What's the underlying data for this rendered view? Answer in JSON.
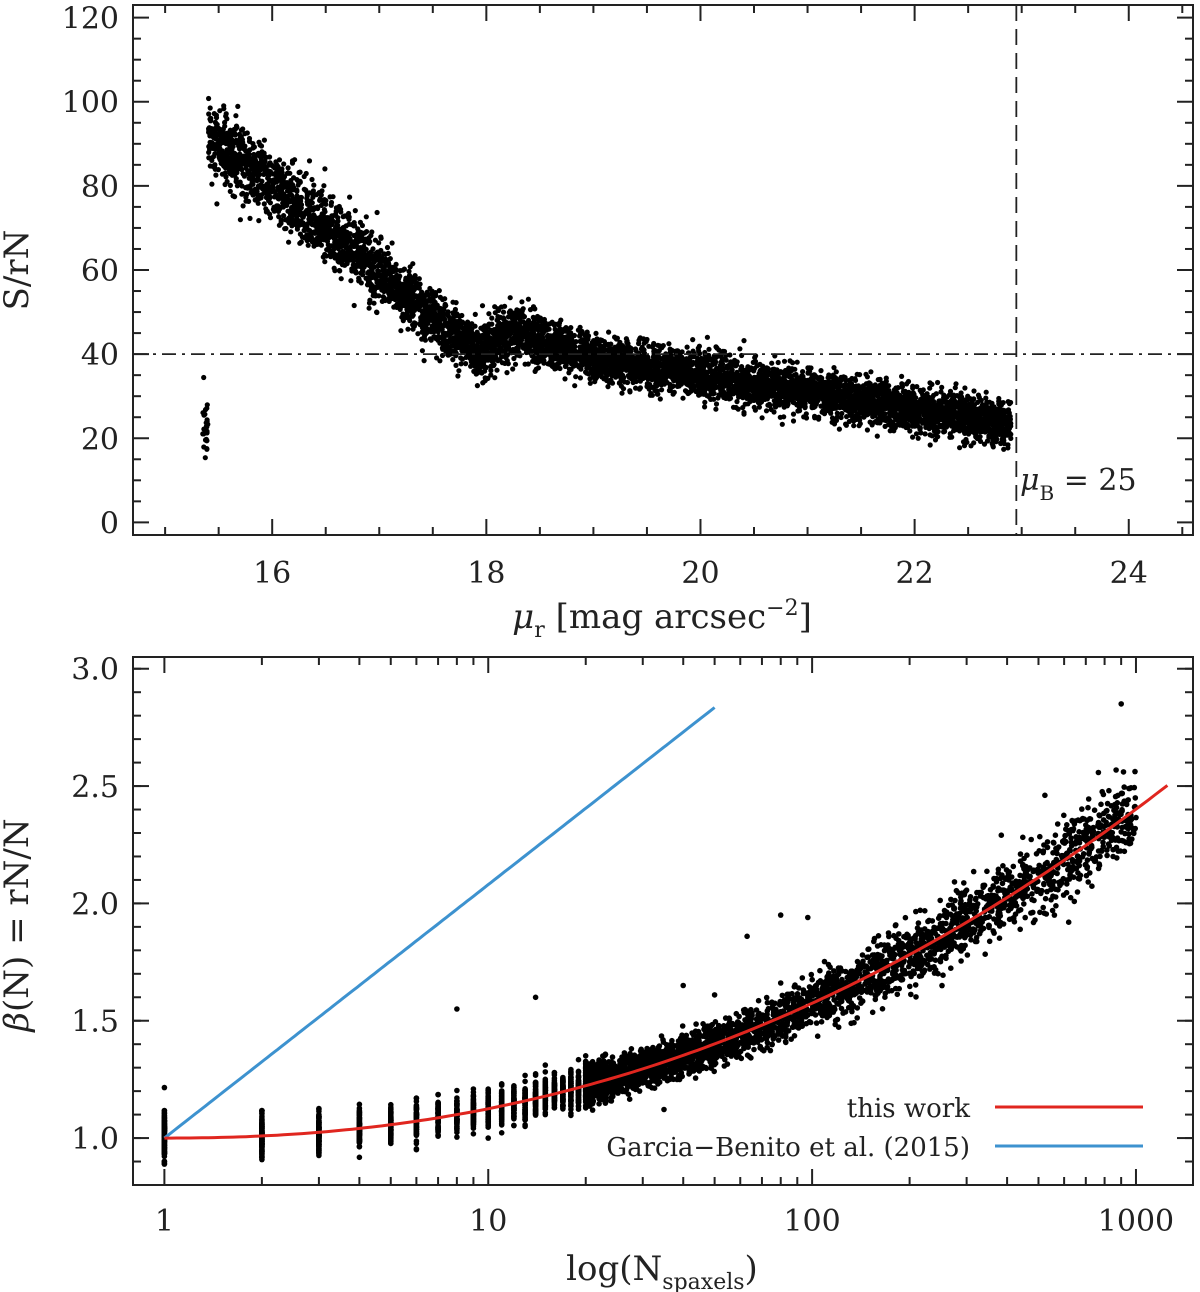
{
  "chart_data": [
    {
      "type": "scatter",
      "title": "",
      "xlabel": "μr [mag arcsec−2]",
      "xlabel_parts": {
        "symbol": "μ",
        "sub": "r",
        "unit_prefix": " [mag arcsec",
        "sup": "−2",
        "unit_suffix": "]"
      },
      "ylabel": "S/rN",
      "xlim": [
        14.7,
        24.6
      ],
      "ylim": [
        -3,
        123
      ],
      "x_ticks": [
        "16",
        "18",
        "20",
        "22",
        "24"
      ],
      "y_ticks": [
        "0",
        "20",
        "40",
        "60",
        "80",
        "100",
        "120"
      ],
      "grid": false,
      "reference_lines": [
        {
          "orientation": "horizontal",
          "value": 40,
          "style": "dash-dot"
        },
        {
          "orientation": "vertical",
          "value": 22.95,
          "style": "dashed"
        }
      ],
      "annotation": {
        "symbol": "μ",
        "sub": "B",
        "text": " = 25"
      },
      "trend": [
        {
          "x": 15.4,
          "y": 92
        },
        {
          "x": 16.0,
          "y": 80
        },
        {
          "x": 16.5,
          "y": 70
        },
        {
          "x": 17.0,
          "y": 60
        },
        {
          "x": 17.5,
          "y": 48
        },
        {
          "x": 17.95,
          "y": 40
        },
        {
          "x": 18.2,
          "y": 45
        },
        {
          "x": 18.6,
          "y": 42
        },
        {
          "x": 19.0,
          "y": 39
        },
        {
          "x": 19.5,
          "y": 37
        },
        {
          "x": 20.0,
          "y": 35
        },
        {
          "x": 20.5,
          "y": 33
        },
        {
          "x": 21.0,
          "y": 31
        },
        {
          "x": 21.5,
          "y": 29
        },
        {
          "x": 22.0,
          "y": 27
        },
        {
          "x": 22.5,
          "y": 25
        },
        {
          "x": 22.9,
          "y": 23
        }
      ]
    },
    {
      "type": "scatter",
      "title": "",
      "xlabel": "log(Nspaxels)",
      "xlabel_parts": {
        "prefix": "log(N",
        "sub": "spaxels",
        "suffix": ")"
      },
      "ylabel": "β(N) = rN/N",
      "ylabel_parts": {
        "symbol": "β",
        "text": "(N) = rN/N"
      },
      "xscale": "log",
      "xlim": [
        0.8,
        1500
      ],
      "ylim": [
        0.8,
        3.05
      ],
      "x_ticks": [
        "1",
        "10",
        "100",
        "1000"
      ],
      "x_tick_values": [
        1,
        10,
        100,
        1000
      ],
      "y_ticks": [
        "1.0",
        "1.5",
        "2.0",
        "2.5",
        "3.0"
      ],
      "grid": false,
      "series": [
        {
          "name": "this work",
          "color": "#e0261f",
          "curve": {
            "form": "beta = 1 + a*(log10 N)^b",
            "a": 0.125,
            "b": 2.2,
            "x_range": [
              1,
              1250
            ]
          }
        },
        {
          "name": "Garcia−Benito et al. (2015)",
          "color": "#3d92cf",
          "curve": {
            "form": "beta = 1 + c*log10 N",
            "c": 1.08,
            "x_range": [
              1,
              50
            ]
          }
        }
      ],
      "legend": {
        "position": "bottom-right",
        "entries": [
          "this work",
          "Garcia−Benito et al. (2015)"
        ]
      },
      "outlier_points": [
        {
          "x": 900,
          "y": 2.85
        },
        {
          "x": 440,
          "y": 2.21
        },
        {
          "x": 440,
          "y": 2.18
        },
        {
          "x": 80,
          "y": 1.95
        },
        {
          "x": 97,
          "y": 1.94
        },
        {
          "x": 260,
          "y": 1.94
        },
        {
          "x": 63,
          "y": 1.86
        },
        {
          "x": 40,
          "y": 1.65
        },
        {
          "x": 50,
          "y": 1.61
        },
        {
          "x": 14,
          "y": 1.6
        },
        {
          "x": 8,
          "y": 1.55
        },
        {
          "x": 720,
          "y": 2.13
        },
        {
          "x": 850,
          "y": 2.2
        },
        {
          "x": 560,
          "y": 1.95
        },
        {
          "x": 620,
          "y": 1.92
        }
      ]
    }
  ]
}
